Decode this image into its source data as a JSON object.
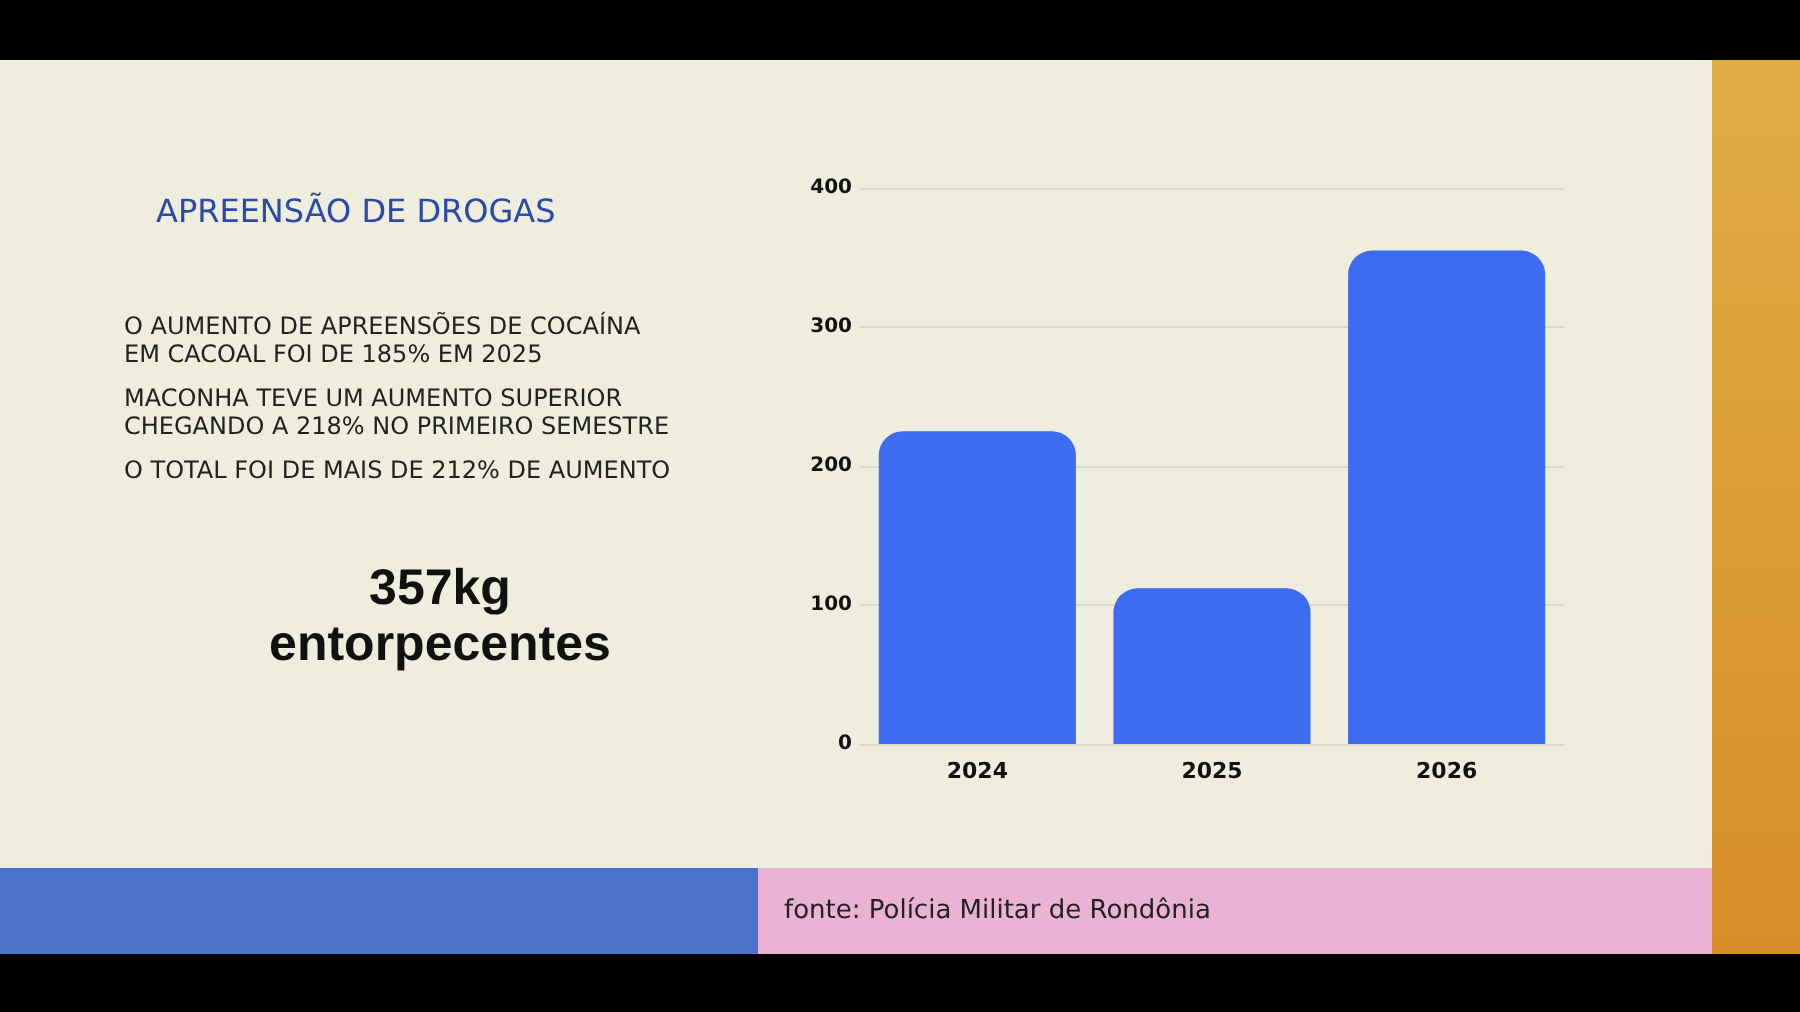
{
  "chart_data": {
    "type": "bar",
    "title": "APREENSÃO DE DROGAS",
    "categories": [
      "2024",
      "2025",
      "2026"
    ],
    "values": [
      225,
      112,
      355
    ],
    "color": "#3d6cf0",
    "ylim": [
      0,
      400
    ],
    "yticks": [
      0,
      100,
      200,
      300,
      400
    ],
    "grid": "y",
    "annotations": [
      "O AUMENTO DE APREENSÕES DE COCAÍNA\nEM CACOAL FOI DE 185% EM 2025",
      "MACONHA TEVE UM AUMENTO SUPERIOR\nCHEGANDO A 218% NO PRIMEIRO SEMESTRE",
      "O TOTAL FOI DE MAIS DE 212% DE AUMENTO",
      "357kg\nentorpecentes",
      "fonte: Polícia Militar de Rondônia"
    ]
  }
}
